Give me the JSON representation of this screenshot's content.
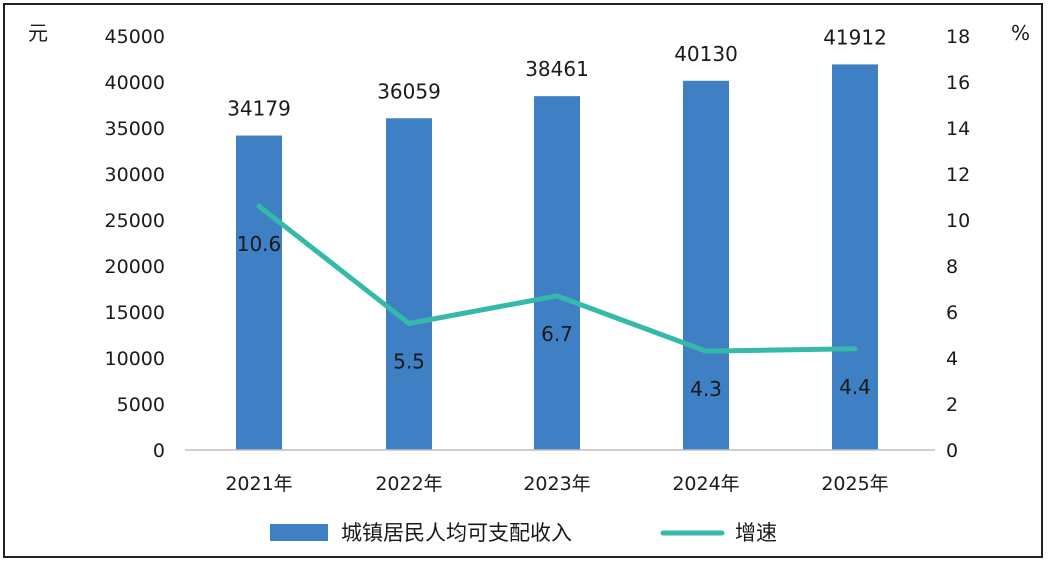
{
  "chart_data": {
    "type": "bar",
    "categories": [
      "2021年",
      "2022年",
      "2023年",
      "2024年",
      "2025年"
    ],
    "series": [
      {
        "name": "城镇居民人均可支配收入",
        "type": "bar",
        "axis": "left",
        "color": "#3f7fc4",
        "values": [
          34179,
          36059,
          38461,
          40130,
          41912
        ]
      },
      {
        "name": "增速",
        "type": "line",
        "axis": "right",
        "color": "#35b9a9",
        "values": [
          10.6,
          5.5,
          6.7,
          4.3,
          4.4
        ]
      }
    ],
    "y_left": {
      "unit": "元",
      "ylim": [
        0,
        45000
      ],
      "ticks": [
        "45000",
        "40000",
        "35000",
        "30000",
        "25000",
        "20000",
        "15000",
        "10000",
        "5000",
        "0"
      ]
    },
    "y_right": {
      "unit": "%",
      "ylim": [
        0,
        18
      ],
      "ticks": [
        "18",
        "16",
        "14",
        "12",
        "10",
        "8",
        "6",
        "4",
        "2",
        "0"
      ]
    },
    "bar_labels": [
      "34179",
      "36059",
      "38461",
      "40130",
      "41912"
    ],
    "line_labels": [
      "10.6",
      "5.5",
      "6.7",
      "4.3",
      "4.4"
    ],
    "legend": {
      "position": "bottom",
      "items": [
        "城镇居民人均可支配收入",
        "增速"
      ]
    },
    "grid": false
  }
}
